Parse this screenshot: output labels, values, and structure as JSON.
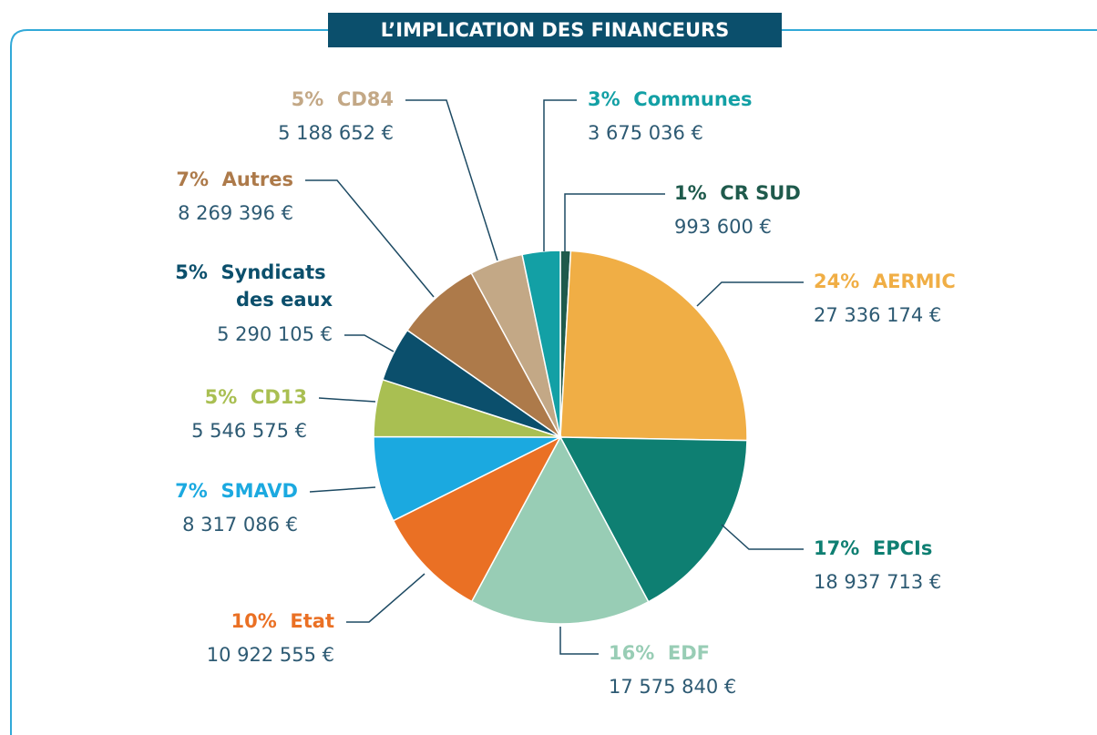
{
  "chart_data": {
    "type": "pie",
    "title": "L’IMPLICATION DES FINANCEURS",
    "categories": [
      "CR SUD",
      "AERMIC",
      "EPCIs",
      "EDF",
      "Etat",
      "SMAVD",
      "CD13",
      "Syndicats des eaux",
      "Autres",
      "CD84",
      "Communes"
    ],
    "percent_labels": [
      "1%",
      "24%",
      "17%",
      "16%",
      "10%",
      "7%",
      "5%",
      "5%",
      "7%",
      "5%",
      "3%"
    ],
    "values": [
      993600,
      27336174,
      18937713,
      17575840,
      10922555,
      8317086,
      5546575,
      5290105,
      8269396,
      5188652,
      3675036
    ],
    "value_labels": [
      "993 600 €",
      "27 336 174 €",
      "18 937 713 €",
      "17 575 840 €",
      "10 922 555 €",
      "8 317 086 €",
      "5 546 575 €",
      "5 290 105 €",
      "8 269 396 €",
      "5 188 652 €",
      "3 675 036 €"
    ],
    "colors": [
      "#1f5a4c",
      "#f0ae45",
      "#0e7f72",
      "#98cdb5",
      "#ea7024",
      "#1ba9e0",
      "#a9bf52",
      "#0b4f6c",
      "#ad7a4a",
      "#c3a886",
      "#13a0a5"
    ]
  }
}
